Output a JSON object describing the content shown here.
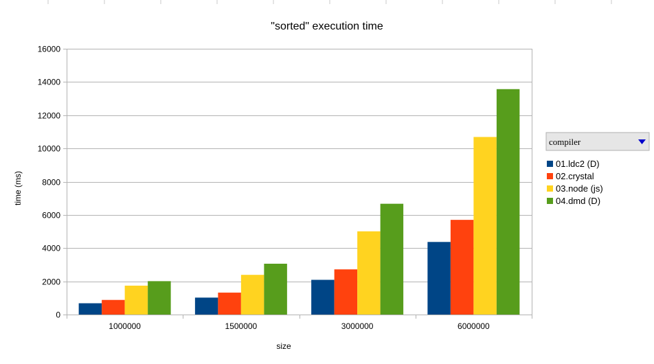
{
  "chart_data": {
    "type": "bar",
    "title": "\"sorted\" execution time",
    "xlabel": "size",
    "ylabel": "time (ms)",
    "categories": [
      "1000000",
      "1500000",
      "3000000",
      "6000000"
    ],
    "ylim": [
      0,
      16000
    ],
    "yticks": [
      0,
      2000,
      4000,
      6000,
      8000,
      10000,
      12000,
      14000,
      16000
    ],
    "grid": true,
    "legend_placement": "right",
    "legend_title": "compiler",
    "series": [
      {
        "name": "01.ldc2 (D)",
        "color": "#004586",
        "values": [
          680,
          1020,
          2090,
          4370
        ]
      },
      {
        "name": "02.crystal",
        "color": "#ff420e",
        "values": [
          880,
          1320,
          2720,
          5700
        ]
      },
      {
        "name": "03.node (js)",
        "color": "#ffd320",
        "values": [
          1740,
          2390,
          5010,
          10690
        ]
      },
      {
        "name": "04.dmd (D)",
        "color": "#579d1c",
        "values": [
          2010,
          3060,
          6670,
          13570
        ]
      }
    ]
  }
}
